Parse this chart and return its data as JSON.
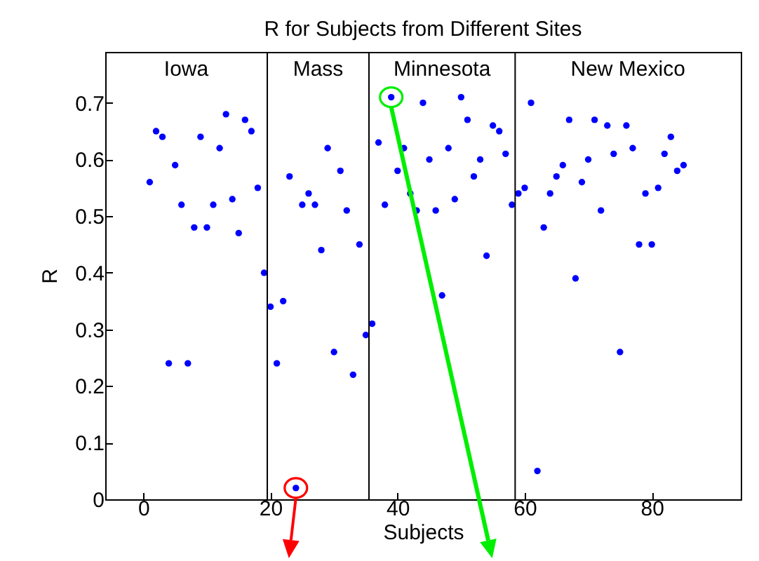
{
  "chart_data": {
    "type": "scatter",
    "title": "R for Subjects from Different Sites",
    "xlabel": "Subjects",
    "ylabel": "R",
    "x": [
      1,
      2,
      3,
      4,
      5,
      6,
      7,
      8,
      9,
      10,
      11,
      12,
      13,
      14,
      15,
      16,
      17,
      18,
      19,
      20,
      21,
      22,
      23,
      24,
      25,
      26,
      27,
      28,
      29,
      30,
      31,
      32,
      33,
      34,
      35,
      36,
      37,
      38,
      39,
      40,
      41,
      42,
      43,
      44,
      45,
      46,
      47,
      48,
      49,
      50,
      51,
      52,
      53,
      54,
      55,
      56,
      57,
      58,
      59,
      60,
      61,
      62,
      63,
      64,
      65,
      66,
      67,
      68,
      69,
      70,
      71,
      72,
      73,
      74,
      75,
      76,
      77,
      78,
      79,
      80,
      81,
      82,
      83,
      84,
      85
    ],
    "values": [
      0.56,
      0.65,
      0.64,
      0.24,
      0.59,
      0.52,
      0.24,
      0.48,
      0.64,
      0.48,
      0.52,
      0.62,
      0.68,
      0.53,
      0.47,
      0.67,
      0.65,
      0.55,
      0.4,
      0.34,
      0.24,
      0.35,
      0.57,
      0.02,
      0.52,
      0.54,
      0.52,
      0.44,
      0.62,
      0.26,
      0.58,
      0.51,
      0.22,
      0.45,
      0.29,
      0.31,
      0.63,
      0.52,
      0.71,
      0.58,
      0.62,
      0.54,
      0.51,
      0.7,
      0.6,
      0.51,
      0.36,
      0.62,
      0.53,
      0.71,
      0.67,
      0.57,
      0.6,
      0.43,
      0.66,
      0.65,
      0.61,
      0.52,
      0.54,
      0.55,
      0.7,
      0.05,
      0.48,
      0.54,
      0.57,
      0.59,
      0.67,
      0.39,
      0.56,
      0.6,
      0.67,
      0.51,
      0.66,
      0.61,
      0.26,
      0.66,
      0.62,
      0.45,
      0.54,
      0.45,
      0.55,
      0.61,
      0.64,
      0.58,
      0.59
    ],
    "color": "#0000ff",
    "marker": "circle",
    "xlim": [
      -6,
      94
    ],
    "xticks": [
      0,
      20,
      40,
      60,
      80
    ],
    "ylim": [
      0,
      0.79
    ],
    "yticks": [
      0,
      0.1,
      0.2,
      0.3,
      0.4,
      0.5,
      0.6,
      0.7
    ],
    "ref_lines": [
      {
        "axis": "x",
        "value": 19.5
      },
      {
        "axis": "x",
        "value": 35.5
      },
      {
        "axis": "x",
        "value": 58.5
      }
    ],
    "annotations": [
      "Iowa",
      "Mass",
      "Minnesota",
      "New Mexico"
    ],
    "grid": false
  }
}
